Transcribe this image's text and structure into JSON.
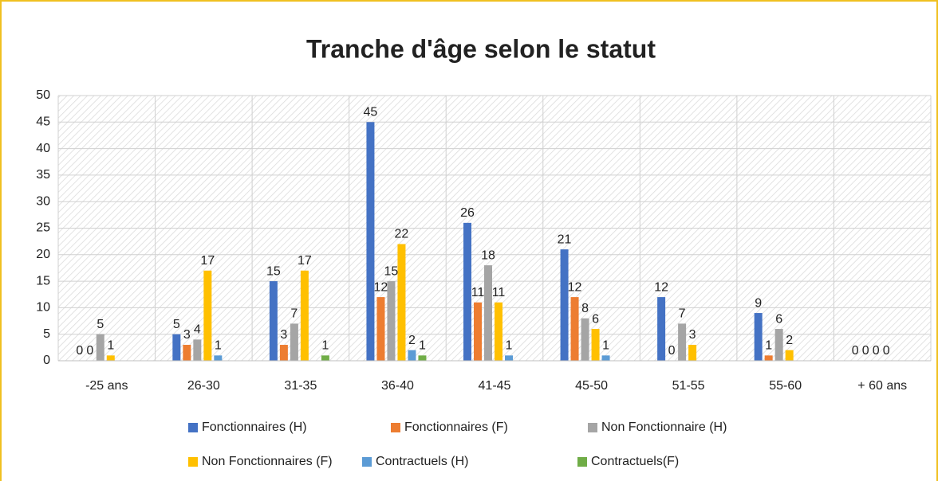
{
  "chart_data": {
    "type": "bar",
    "title": "Tranche d'âge selon le statut",
    "categories": [
      "-25 ans",
      "26-30",
      "31-35",
      "36-40",
      "41-45",
      "45-50",
      "51-55",
      "55-60",
      "+ 60 ans"
    ],
    "series": [
      {
        "name": "Fonctionnaires (H)",
        "color": "#4472c4",
        "values": [
          0,
          5,
          15,
          45,
          26,
          21,
          12,
          9,
          0
        ]
      },
      {
        "name": "Fonctionnaires (F)",
        "color": "#ed7d31",
        "values": [
          0,
          3,
          3,
          12,
          11,
          12,
          0,
          1,
          0
        ]
      },
      {
        "name": "Non Fonctionnaire (H)",
        "color": "#a5a5a5",
        "values": [
          5,
          4,
          7,
          15,
          18,
          8,
          7,
          6,
          0
        ]
      },
      {
        "name": "Non Fonctionnaires (F)",
        "color": "#ffc000",
        "values": [
          1,
          17,
          17,
          22,
          11,
          6,
          3,
          2,
          0
        ]
      },
      {
        "name": "Contractuels (H)",
        "color": "#5b9bd5",
        "values": [
          null,
          1,
          null,
          2,
          1,
          1,
          null,
          null,
          null
        ]
      },
      {
        "name": "Contractuels(F)",
        "color": "#70ad47",
        "values": [
          null,
          null,
          1,
          1,
          null,
          null,
          null,
          null,
          null
        ]
      }
    ],
    "ylim": [
      0,
      50
    ],
    "yticks": [
      0,
      5,
      10,
      15,
      20,
      25,
      30,
      35,
      40,
      45,
      50
    ],
    "grid": true,
    "legend": "bottom"
  }
}
